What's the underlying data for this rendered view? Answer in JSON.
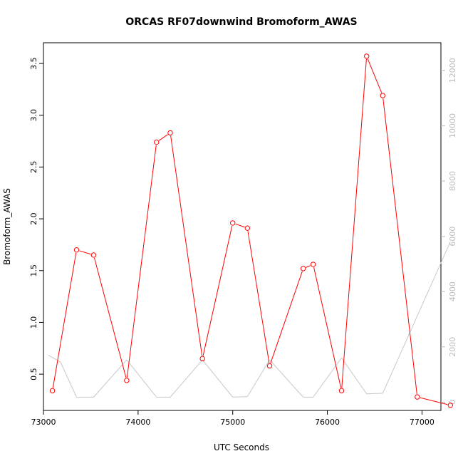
{
  "chart_data": {
    "type": "line",
    "title": "ORCAS RF07downwind Bromoform_AWAS",
    "xlabel": "UTC Seconds",
    "ylabel": "Bromoform_AWAS",
    "xlim": [
      73000,
      77200
    ],
    "ylim": [
      0.15,
      3.7
    ],
    "y2lim": [
      -300,
      13000
    ],
    "x_ticks": [
      73000,
      74000,
      75000,
      76000,
      77000
    ],
    "y_ticks": [
      0.5,
      1.0,
      1.5,
      2.0,
      2.5,
      3.0,
      3.5
    ],
    "y_tick_labels": [
      "0.5",
      "1.0",
      "1.5",
      "2.0",
      "2.5",
      "3.0",
      "3.5"
    ],
    "y2_ticks": [
      0,
      2000,
      4000,
      6000,
      8000,
      10000,
      12000
    ],
    "grid": false,
    "series": [
      {
        "axis": "left",
        "color": "#ff0000",
        "marker": "open-circle",
        "x": [
          73095,
          73350,
          73530,
          73880,
          74195,
          74340,
          74680,
          75000,
          75155,
          75390,
          75745,
          75850,
          76150,
          76415,
          76585,
          76950,
          77300
        ],
        "values": [
          0.34,
          1.7,
          1.65,
          0.44,
          2.74,
          2.83,
          0.65,
          1.96,
          1.91,
          0.58,
          1.52,
          1.56,
          0.34,
          3.57,
          3.19,
          0.28,
          0.2
        ]
      },
      {
        "axis": "right",
        "color": "#c8c8c8",
        "marker": "none",
        "x": [
          73050,
          73180,
          73350,
          73530,
          73880,
          74195,
          74340,
          74680,
          75000,
          75155,
          75390,
          75745,
          75850,
          76150,
          76415,
          76585,
          77300
        ],
        "values": [
          1700,
          1450,
          180,
          180,
          1530,
          180,
          180,
          1530,
          180,
          200,
          1530,
          180,
          180,
          1600,
          300,
          320,
          5800
        ]
      }
    ]
  }
}
